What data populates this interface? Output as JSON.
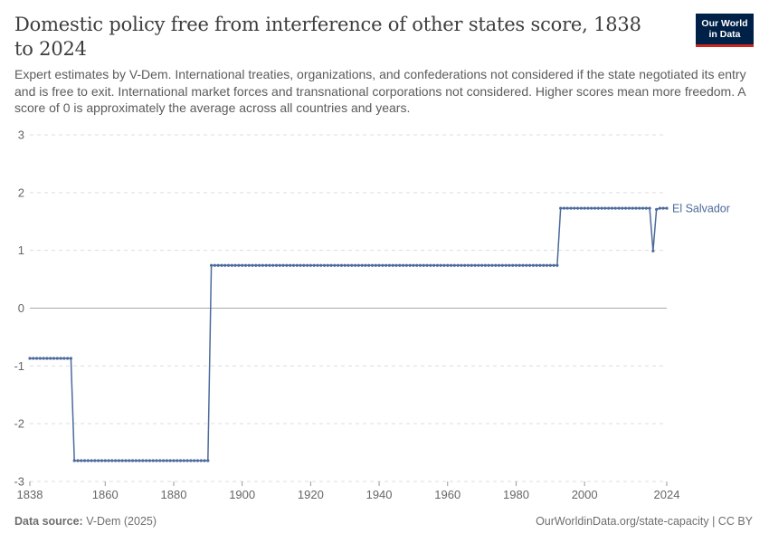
{
  "header": {
    "title": "Domestic policy free from interference of other states score, 1838 to 2024",
    "subtitle": "Expert estimates by V-Dem. International treaties, organizations, and confederations not considered if the state negotiated its entry and is free to exit. International market forces and transnational corporations not considered. Higher scores mean more freedom. A score of 0 is approximately the average across all countries and years.",
    "logo_line1": "Our World",
    "logo_line2": "in Data"
  },
  "footer": {
    "source_label": "Data source:",
    "source_value": "V-Dem (2025)",
    "url_text": "OurWorldinData.org/state-capacity",
    "license": "| CC BY"
  },
  "colors": {
    "series": "#4c6a9c",
    "grid": "#dddddd",
    "zero_line": "#a8a8a8",
    "tick_text": "#666666"
  },
  "chart_data": {
    "type": "line",
    "title": "Domestic policy free from interference of other states score, 1838 to 2024",
    "xlim": [
      1838,
      2024
    ],
    "ylim": [
      -3,
      3
    ],
    "y_ticks": [
      3,
      2,
      1,
      0,
      -1,
      -2,
      -3
    ],
    "x_ticks": [
      1838,
      1860,
      1880,
      1900,
      1920,
      1940,
      1960,
      1980,
      2000,
      2024
    ],
    "grid": "horizontal dashed",
    "legend": "inline label at end of line",
    "series": [
      {
        "name": "El Salvador",
        "color": "#4c6a9c",
        "segments": [
          {
            "from": 1838,
            "to": 1850,
            "value": -0.87
          },
          {
            "from": 1851,
            "to": 1890,
            "value": -2.64
          },
          {
            "from": 1891,
            "to": 1992,
            "value": 0.74
          },
          {
            "from": 1993,
            "to": 2019,
            "value": 1.73
          },
          {
            "from": 2020,
            "to": 2020,
            "value": 0.99
          },
          {
            "from": 2021,
            "to": 2021,
            "value": 1.71
          },
          {
            "from": 2022,
            "to": 2024,
            "value": 1.73
          }
        ]
      }
    ]
  }
}
